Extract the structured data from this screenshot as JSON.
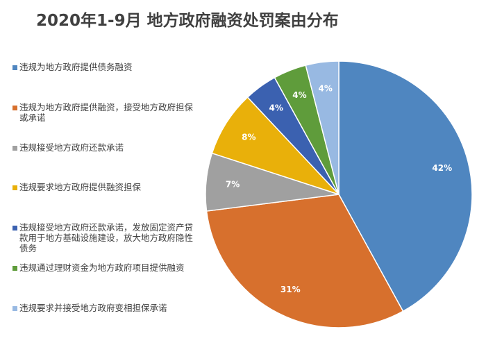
{
  "chart_data": {
    "type": "pie",
    "title": "2020年1-9月 地方政府融资处罚案由分布",
    "legend_position": "left",
    "categories": [
      "违规为地方政府提供债务融资",
      "违规为地方政府提供融资，接受地方政府担保或承诺",
      "违规接受地方政府还款承诺",
      "违规要求地方政府提供融资担保",
      "违规接受地方政府还款承诺，发放固定资产贷款用于地方基础设施建设，放大地方政府隐性债务",
      "违规通过理财资金为地方政府项目提供融资",
      "违规要求并接受地方政府变相担保承诺"
    ],
    "values": [
      42,
      31,
      7,
      8,
      4,
      4,
      4
    ],
    "data_labels": [
      "42%",
      "31%",
      "7%",
      "8%",
      "4%",
      "4%",
      "4%"
    ],
    "colors": [
      "#4f86c0",
      "#d7702d",
      "#a0a0a0",
      "#e9b00a",
      "#3b61b0",
      "#5f9c3b",
      "#98b9e2"
    ]
  }
}
